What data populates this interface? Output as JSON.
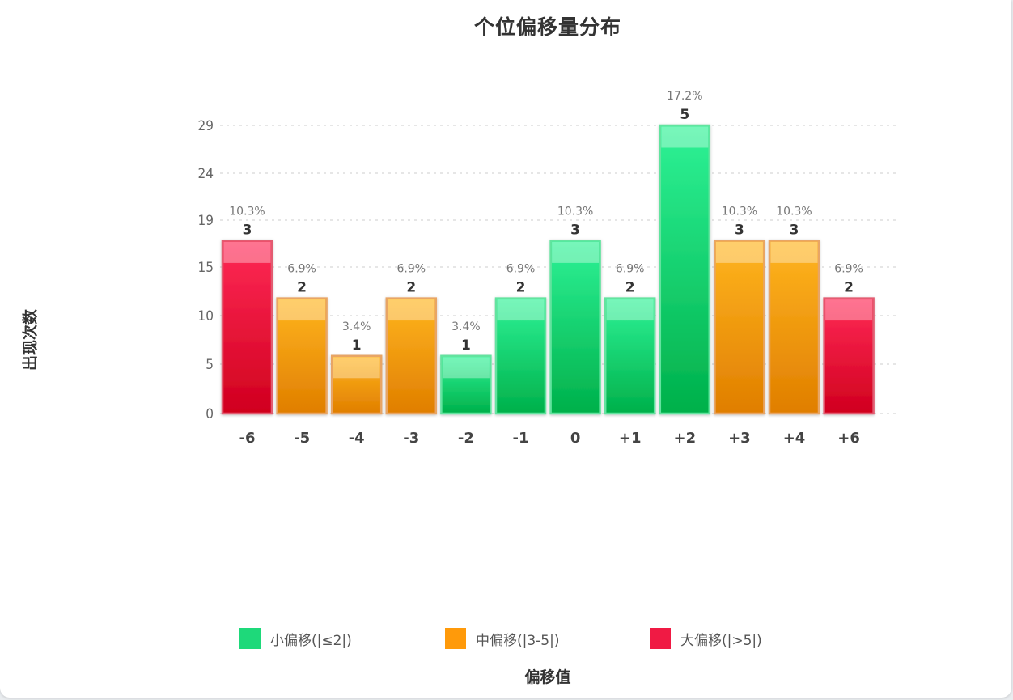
{
  "chart_data": {
    "type": "bar",
    "title": "个位偏移量分布",
    "xlabel": "偏移值",
    "ylabel": "出现次数",
    "categories": [
      "-6",
      "-5",
      "-4",
      "-3",
      "-2",
      "-1",
      "0",
      "+1",
      "+2",
      "+3",
      "+4",
      "+6"
    ],
    "values": [
      3,
      2,
      1,
      2,
      1,
      2,
      3,
      2,
      5,
      3,
      3,
      2
    ],
    "percent_labels": [
      "10.3%",
      "6.9%",
      "3.4%",
      "6.9%",
      "3.4%",
      "6.9%",
      "10.3%",
      "6.9%",
      "17.2%",
      "10.3%",
      "10.3%",
      "6.9%"
    ],
    "groups": [
      "large",
      "medium",
      "medium",
      "medium",
      "small",
      "small",
      "small",
      "small",
      "small",
      "medium",
      "medium",
      "large"
    ],
    "y_tick_labels": [
      "0",
      "5",
      "10",
      "15",
      "19",
      "24",
      "29"
    ],
    "ylim": [
      0,
      5
    ],
    "grid": true,
    "legend_position": "bottom",
    "legend": [
      {
        "key": "small",
        "label": "小偏移(|≤2|)",
        "color": "#1ed97a"
      },
      {
        "key": "medium",
        "label": "中偏移(|3-5|)",
        "color": "#ff9a0a"
      },
      {
        "key": "large",
        "label": "大偏移(|>5|)",
        "color": "#f01a44"
      }
    ],
    "colors": {
      "small": {
        "top": "#2ef296",
        "bottom": "#00b04a",
        "border": "#63e39f"
      },
      "medium": {
        "top": "#ffb51f",
        "bottom": "#e07e00",
        "border": "#e8a565"
      },
      "large": {
        "top": "#ff2a56",
        "bottom": "#d0001e",
        "border": "#e25c71"
      }
    }
  }
}
